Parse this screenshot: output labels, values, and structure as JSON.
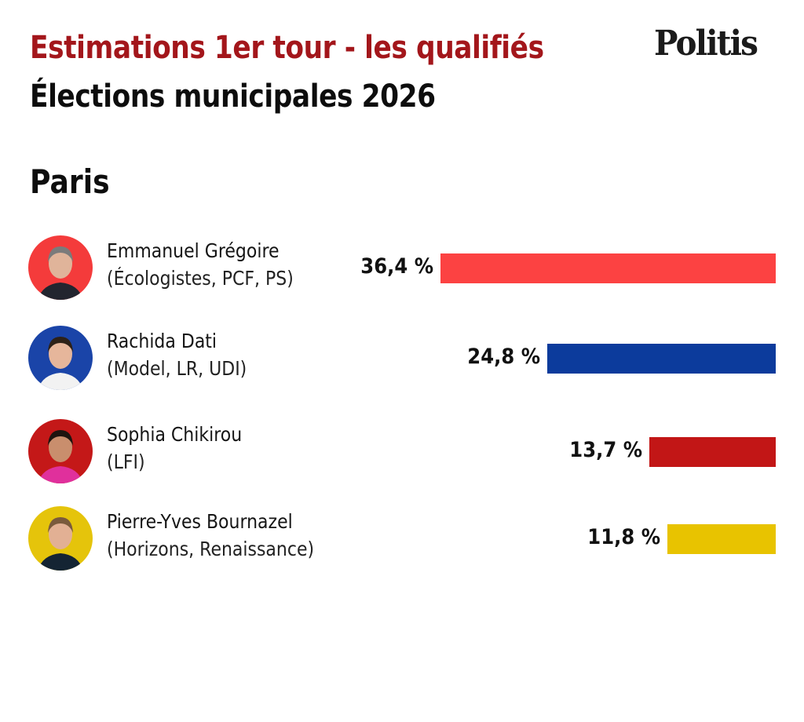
{
  "header": {
    "title": "Estimations 1er tour - les qualifiés",
    "subtitle": "Élections municipales 2026",
    "logo": "Politis",
    "title_color": "#a3161b"
  },
  "city": "Paris",
  "chart_data": {
    "type": "bar",
    "orientation": "horizontal",
    "title": "Estimations 1er tour - les qualifiés",
    "subtitle": "Élections municipales 2026 — Paris",
    "xlabel": "",
    "ylabel": "",
    "unit": "%",
    "bar_alignment": "right",
    "grid": false,
    "categories": [
      "Emmanuel Grégoire",
      "Rachida Dati",
      "Sophia Chikirou",
      "Pierre-Yves Bournazel"
    ],
    "values": [
      36.4,
      24.8,
      13.7,
      11.8
    ],
    "value_labels": [
      "36,4 %",
      "24,8 %",
      "13,7 %",
      "11,8 %"
    ],
    "parties": [
      "(Écologistes, PCF, PS)",
      "(Model, LR, UDI)",
      "(LFI)",
      "(Horizons, Renaissance)"
    ],
    "colors": [
      "#fc4242",
      "#0c3b9c",
      "#c21616",
      "#e8c300"
    ]
  },
  "candidates": [
    {
      "name": "Emmanuel Grégoire",
      "party": "(Écologistes, PCF, PS)",
      "value": 36.4,
      "label": "36,4 %",
      "color": "#fc4242",
      "avatar_bg": "#f43b3b"
    },
    {
      "name": "Rachida Dati",
      "party": "(Model, LR, UDI)",
      "value": 24.8,
      "label": "24,8 %",
      "color": "#0c3b9c",
      "avatar_bg": "#1a44a8"
    },
    {
      "name": "Sophia Chikirou",
      "party": "(LFI)",
      "value": 13.7,
      "label": "13,7 %",
      "color": "#c21616",
      "avatar_bg": "#c41818"
    },
    {
      "name": "Pierre-Yves Bournazel",
      "party": "(Horizons, Renaissance)",
      "value": 11.8,
      "label": "11,8 %",
      "color": "#e8c300",
      "avatar_bg": "#e5c40b"
    }
  ]
}
